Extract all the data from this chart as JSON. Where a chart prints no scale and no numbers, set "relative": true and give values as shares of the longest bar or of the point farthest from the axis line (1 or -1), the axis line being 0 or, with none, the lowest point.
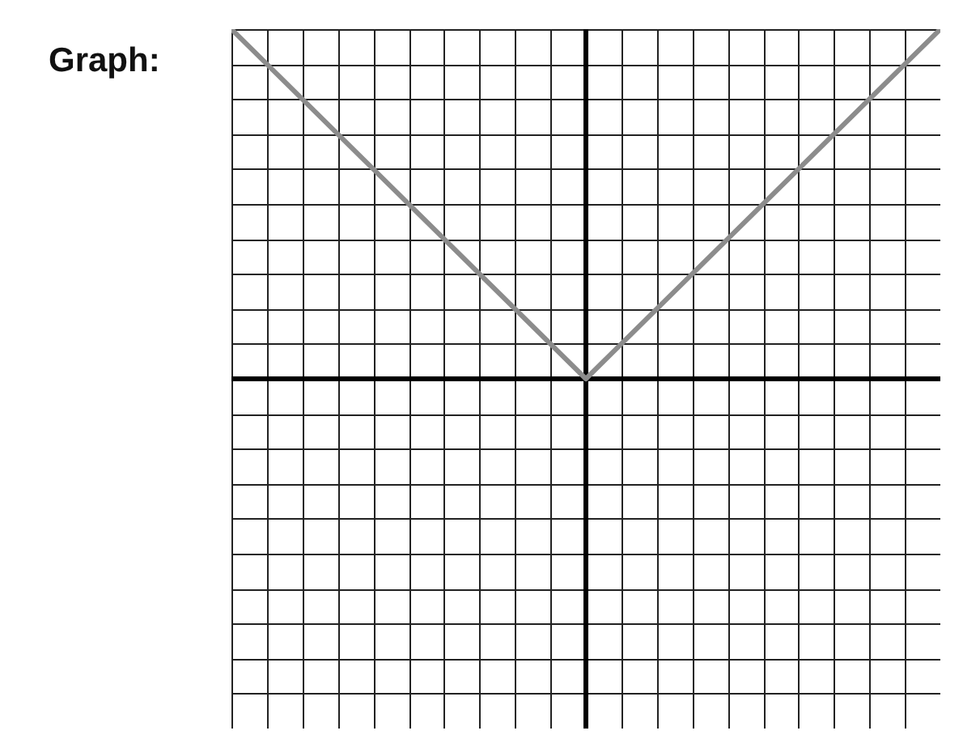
{
  "chart_data": {
    "type": "line",
    "title": "Graph:",
    "relative": true,
    "categories": [
      null,
      null,
      null
    ],
    "series": [
      {
        "color": "#8c8c8c",
        "values": [
          1,
          0,
          1
        ]
      }
    ],
    "grid": true
  }
}
